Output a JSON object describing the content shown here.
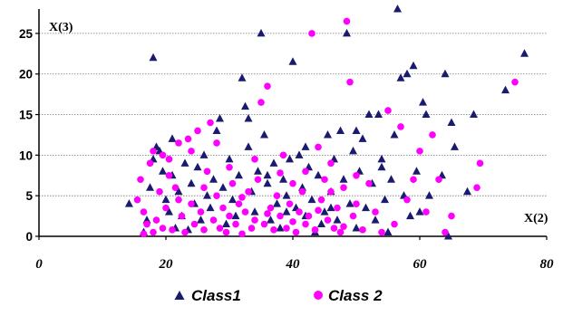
{
  "chart_data": {
    "type": "scatter",
    "title": "",
    "xlabel": "X(2)",
    "ylabel": "X(3)",
    "xlim": [
      0,
      80
    ],
    "ylim": [
      0,
      28
    ],
    "x_ticks": [
      "0",
      "20",
      "40",
      "60",
      "80"
    ],
    "y_ticks": [
      "0",
      "5",
      "10",
      "15",
      "20",
      "25"
    ],
    "grid": "horizontal",
    "legend_position": "bottom",
    "series": [
      {
        "name": "Class1",
        "marker": "triangle",
        "color": "#1a1a6e",
        "points": [
          [
            14.2,
            4.0
          ],
          [
            16.5,
            0.5
          ],
          [
            17.0,
            2.0
          ],
          [
            17.5,
            6.0
          ],
          [
            18.0,
            9.5
          ],
          [
            18.0,
            22.0
          ],
          [
            18.5,
            11.0
          ],
          [
            19.0,
            10.5
          ],
          [
            19.5,
            8.0
          ],
          [
            20.0,
            4.5
          ],
          [
            20.5,
            3.0
          ],
          [
            21.0,
            7.5
          ],
          [
            21.0,
            12.0
          ],
          [
            21.5,
            1.0
          ],
          [
            22.0,
            5.5
          ],
          [
            22.5,
            2.5
          ],
          [
            23.0,
            9.0
          ],
          [
            23.5,
            0.8
          ],
          [
            24.0,
            6.5
          ],
          [
            24.5,
            4.0
          ],
          [
            25.0,
            8.5
          ],
          [
            25.5,
            2.0
          ],
          [
            26.0,
            10.0
          ],
          [
            26.5,
            5.0
          ],
          [
            27.0,
            3.5
          ],
          [
            27.5,
            7.0
          ],
          [
            28.0,
            13.0
          ],
          [
            28.5,
            14.5
          ],
          [
            29.0,
            6.0
          ],
          [
            29.5,
            1.5
          ],
          [
            30.0,
            9.5
          ],
          [
            30.5,
            4.5
          ],
          [
            31.0,
            2.5
          ],
          [
            31.5,
            7.5
          ],
          [
            32.0,
            19.5
          ],
          [
            32.5,
            16.0
          ],
          [
            33.0,
            11.0
          ],
          [
            33.5,
            5.5
          ],
          [
            34.0,
            3.0
          ],
          [
            34.5,
            8.0
          ],
          [
            35.0,
            25.0
          ],
          [
            35.5,
            12.5
          ],
          [
            36.0,
            6.5
          ],
          [
            36.5,
            2.0
          ],
          [
            37.0,
            9.0
          ],
          [
            37.5,
            4.0
          ],
          [
            38.0,
            1.0
          ],
          [
            38.5,
            7.0
          ],
          [
            39.0,
            5.0
          ],
          [
            39.5,
            9.5
          ],
          [
            40.0,
            21.5
          ],
          [
            40.5,
            3.5
          ],
          [
            41.0,
            10.0
          ],
          [
            41.5,
            6.0
          ],
          [
            42.0,
            2.5
          ],
          [
            42.5,
            8.5
          ],
          [
            43.0,
            4.5
          ],
          [
            43.5,
            0.5
          ],
          [
            44.0,
            7.5
          ],
          [
            44.5,
            1.5
          ],
          [
            45.0,
            3.0
          ],
          [
            45.5,
            12.5
          ],
          [
            46.0,
            5.5
          ],
          [
            46.5,
            9.5
          ],
          [
            47.0,
            2.0
          ],
          [
            47.5,
            13.0
          ],
          [
            48.0,
            7.0
          ],
          [
            48.5,
            25.0
          ],
          [
            49.0,
            4.0
          ],
          [
            49.5,
            10.5
          ],
          [
            50.0,
            1.0
          ],
          [
            50.5,
            8.0
          ],
          [
            51.0,
            12.0
          ],
          [
            51.5,
            3.5
          ],
          [
            52.0,
            15.0
          ],
          [
            52.5,
            6.5
          ],
          [
            53.0,
            2.0
          ],
          [
            53.5,
            15.0
          ],
          [
            54.0,
            9.5
          ],
          [
            54.5,
            4.5
          ],
          [
            55.0,
            0.5
          ],
          [
            55.5,
            7.0
          ],
          [
            56.0,
            12.5
          ],
          [
            56.5,
            28.0
          ],
          [
            57.0,
            19.5
          ],
          [
            57.5,
            5.0
          ],
          [
            58.0,
            20.0
          ],
          [
            58.5,
            2.5
          ],
          [
            59.0,
            21.0
          ],
          [
            59.5,
            8.0
          ],
          [
            60.0,
            3.0
          ],
          [
            60.5,
            16.5
          ],
          [
            61.0,
            15.0
          ],
          [
            61.5,
            5.0
          ],
          [
            63.5,
            7.5
          ],
          [
            64.0,
            20.0
          ],
          [
            64.5,
            0.0
          ],
          [
            65.0,
            14.0
          ],
          [
            65.5,
            11.0
          ],
          [
            67.5,
            5.5
          ],
          [
            68.5,
            15.0
          ],
          [
            73.5,
            18.0
          ],
          [
            76.5,
            22.5
          ],
          [
            33.0,
            14.5
          ],
          [
            36.0,
            7.5
          ],
          [
            39.0,
            3.0
          ],
          [
            42.0,
            11.0
          ],
          [
            46.0,
            3.5
          ],
          [
            50.0,
            13.0
          ],
          [
            54.0,
            8.5
          ]
        ]
      },
      {
        "name": "Class 2",
        "marker": "circle",
        "color": "#ff00ff",
        "points": [
          [
            15.5,
            4.5
          ],
          [
            16.0,
            7.0
          ],
          [
            16.5,
            0.3
          ],
          [
            16.5,
            3.0
          ],
          [
            17.0,
            1.5
          ],
          [
            17.5,
            9.0
          ],
          [
            18.0,
            0.5
          ],
          [
            18.0,
            10.5
          ],
          [
            18.5,
            2.0
          ],
          [
            19.0,
            5.5
          ],
          [
            19.5,
            1.0
          ],
          [
            19.5,
            10.0
          ],
          [
            20.0,
            3.5
          ],
          [
            20.5,
            9.5
          ],
          [
            21.0,
            0.8
          ],
          [
            21.5,
            6.0
          ],
          [
            22.0,
            11.5
          ],
          [
            22.5,
            2.5
          ],
          [
            23.0,
            0.5
          ],
          [
            23.5,
            12.0
          ],
          [
            24.0,
            4.0
          ],
          [
            24.5,
            1.5
          ],
          [
            25.0,
            13.0
          ],
          [
            25.5,
            3.0
          ],
          [
            26.0,
            0.8
          ],
          [
            26.5,
            8.0
          ],
          [
            27.0,
            14.0
          ],
          [
            27.5,
            2.0
          ],
          [
            28.0,
            5.0
          ],
          [
            28.5,
            1.0
          ],
          [
            29.0,
            3.5
          ],
          [
            29.5,
            0.5
          ],
          [
            30.0,
            2.5
          ],
          [
            30.5,
            6.5
          ],
          [
            31.0,
            1.5
          ],
          [
            31.5,
            4.0
          ],
          [
            32.0,
            0.3
          ],
          [
            32.5,
            3.0
          ],
          [
            33.0,
            5.5
          ],
          [
            33.5,
            1.0
          ],
          [
            34.0,
            2.0
          ],
          [
            34.5,
            7.0
          ],
          [
            35.0,
            16.5
          ],
          [
            35.5,
            1.5
          ],
          [
            36.0,
            18.5
          ],
          [
            36.5,
            3.5
          ],
          [
            37.0,
            0.8
          ],
          [
            37.5,
            5.0
          ],
          [
            38.0,
            2.5
          ],
          [
            38.5,
            10.0
          ],
          [
            39.0,
            1.0
          ],
          [
            39.5,
            4.0
          ],
          [
            40.0,
            6.5
          ],
          [
            40.5,
            0.5
          ],
          [
            41.0,
            3.0
          ],
          [
            41.5,
            5.5
          ],
          [
            42.0,
            1.5
          ],
          [
            42.5,
            2.5
          ],
          [
            43.0,
            25.0
          ],
          [
            43.5,
            0.8
          ],
          [
            44.0,
            11.0
          ],
          [
            44.5,
            4.5
          ],
          [
            45.0,
            7.0
          ],
          [
            45.5,
            2.0
          ],
          [
            46.0,
            5.5
          ],
          [
            46.5,
            1.0
          ],
          [
            47.0,
            3.5
          ],
          [
            47.5,
            0.5
          ],
          [
            48.0,
            6.0
          ],
          [
            48.5,
            26.5
          ],
          [
            49.0,
            19.0
          ],
          [
            49.5,
            2.5
          ],
          [
            50.0,
            4.0
          ],
          [
            51.0,
            0.8
          ],
          [
            52.0,
            6.5
          ],
          [
            53.0,
            3.0
          ],
          [
            54.0,
            0.5
          ],
          [
            55.0,
            15.5
          ],
          [
            56.0,
            1.5
          ],
          [
            57.0,
            13.5
          ],
          [
            58.0,
            4.5
          ],
          [
            59.0,
            7.0
          ],
          [
            60.0,
            10.5
          ],
          [
            61.0,
            3.0
          ],
          [
            62.0,
            12.5
          ],
          [
            63.0,
            7.0
          ],
          [
            64.0,
            0.5
          ],
          [
            65.0,
            2.5
          ],
          [
            69.0,
            6.0
          ],
          [
            69.5,
            9.0
          ],
          [
            75.0,
            19.0
          ],
          [
            20.5,
            7.5
          ],
          [
            22.0,
            4.5
          ],
          [
            24.0,
            10.5
          ],
          [
            26.0,
            6.0
          ],
          [
            28.0,
            11.5
          ],
          [
            30.0,
            8.5
          ],
          [
            32.0,
            4.8
          ],
          [
            34.0,
            9.5
          ],
          [
            36.0,
            2.8
          ],
          [
            38.0,
            7.8
          ],
          [
            40.0,
            1.8
          ],
          [
            42.0,
            8.0
          ],
          [
            44.0,
            3.2
          ],
          [
            46.0,
            9.0
          ],
          [
            48.0,
            1.2
          ],
          [
            50.0,
            7.5
          ]
        ]
      }
    ]
  }
}
